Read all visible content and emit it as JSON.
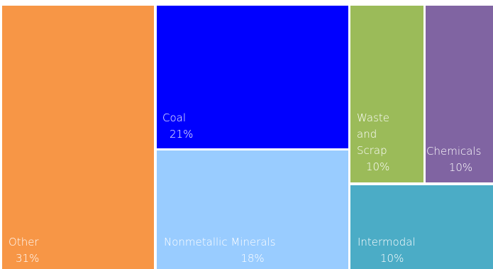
{
  "chart_data": {
    "type": "treemap",
    "title": "",
    "value_unit": "%",
    "items": [
      {
        "name": "Other",
        "label": "Other",
        "percent_label": "31%",
        "value": 31,
        "color": "#F79646"
      },
      {
        "name": "Coal",
        "label": "Coal",
        "percent_label": "21%",
        "value": 21,
        "color": "#0000FF"
      },
      {
        "name": "Nonmetallic Minerals",
        "label": "Nonmetallic Minerals",
        "percent_label": "18%",
        "value": 18,
        "color": "#99CCFF"
      },
      {
        "name": "Waste and Scrap",
        "label": "Waste and Scrap",
        "percent_label": "10%",
        "value": 10,
        "color": "#9BBB59"
      },
      {
        "name": "Chemicals",
        "label": "Chemicals",
        "percent_label": "10%",
        "value": 10,
        "color": "#8064A2"
      },
      {
        "name": "Intermodal",
        "label": "Intermodal",
        "percent_label": "10%",
        "value": 10,
        "color": "#4BACC6"
      }
    ]
  }
}
